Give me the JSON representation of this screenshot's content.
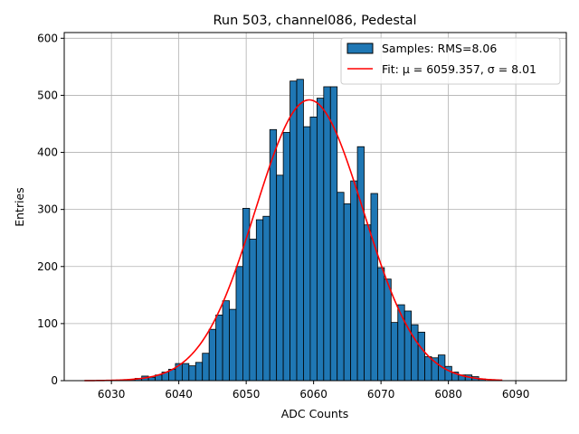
{
  "chart_data": {
    "type": "bar",
    "title": "Run 503, channel086, Pedestal",
    "xlabel": "ADC Counts",
    "ylabel": "Entries",
    "xlim": [
      6023.0,
      6097.5
    ],
    "ylim": [
      0,
      610
    ],
    "xticks": [
      6030,
      6040,
      6050,
      6060,
      6070,
      6080,
      6090
    ],
    "yticks": [
      0,
      100,
      200,
      300,
      400,
      500,
      600
    ],
    "grid": true,
    "legend_position": "top-right",
    "colors": {
      "bars": "#1f77b4",
      "bar_edge": "#000000",
      "fit": "#ff0000",
      "grid": "#b0b0b0"
    },
    "histogram": {
      "name": "Samples: RMS=8.06",
      "bin_width": 1,
      "x": [
        6033,
        6034,
        6035,
        6036,
        6037,
        6038,
        6039,
        6040,
        6041,
        6042,
        6043,
        6044,
        6045,
        6046,
        6047,
        6048,
        6049,
        6050,
        6051,
        6052,
        6053,
        6054,
        6055,
        6056,
        6057,
        6058,
        6059,
        6060,
        6061,
        6062,
        6063,
        6064,
        6065,
        6066,
        6067,
        6068,
        6069,
        6070,
        6071,
        6072,
        6073,
        6074,
        6075,
        6076,
        6077,
        6078,
        6079,
        6080,
        6081,
        6082,
        6083,
        6084,
        6085
      ],
      "counts": [
        2,
        4,
        8,
        6,
        10,
        15,
        20,
        30,
        30,
        26,
        32,
        48,
        90,
        115,
        140,
        125,
        200,
        302,
        248,
        282,
        288,
        440,
        360,
        435,
        525,
        528,
        445,
        462,
        495,
        515,
        515,
        330,
        310,
        350,
        410,
        273,
        328,
        198,
        178,
        102,
        133,
        122,
        98,
        85,
        42,
        40,
        45,
        25,
        15,
        10,
        10,
        7,
        3
      ]
    },
    "fit": {
      "name": "Fit: μ = 6059.357, σ = 8.01",
      "mu": 6059.357,
      "sigma": 8.01,
      "amplitude": 492,
      "x_range": [
        6026,
        6088
      ]
    }
  }
}
